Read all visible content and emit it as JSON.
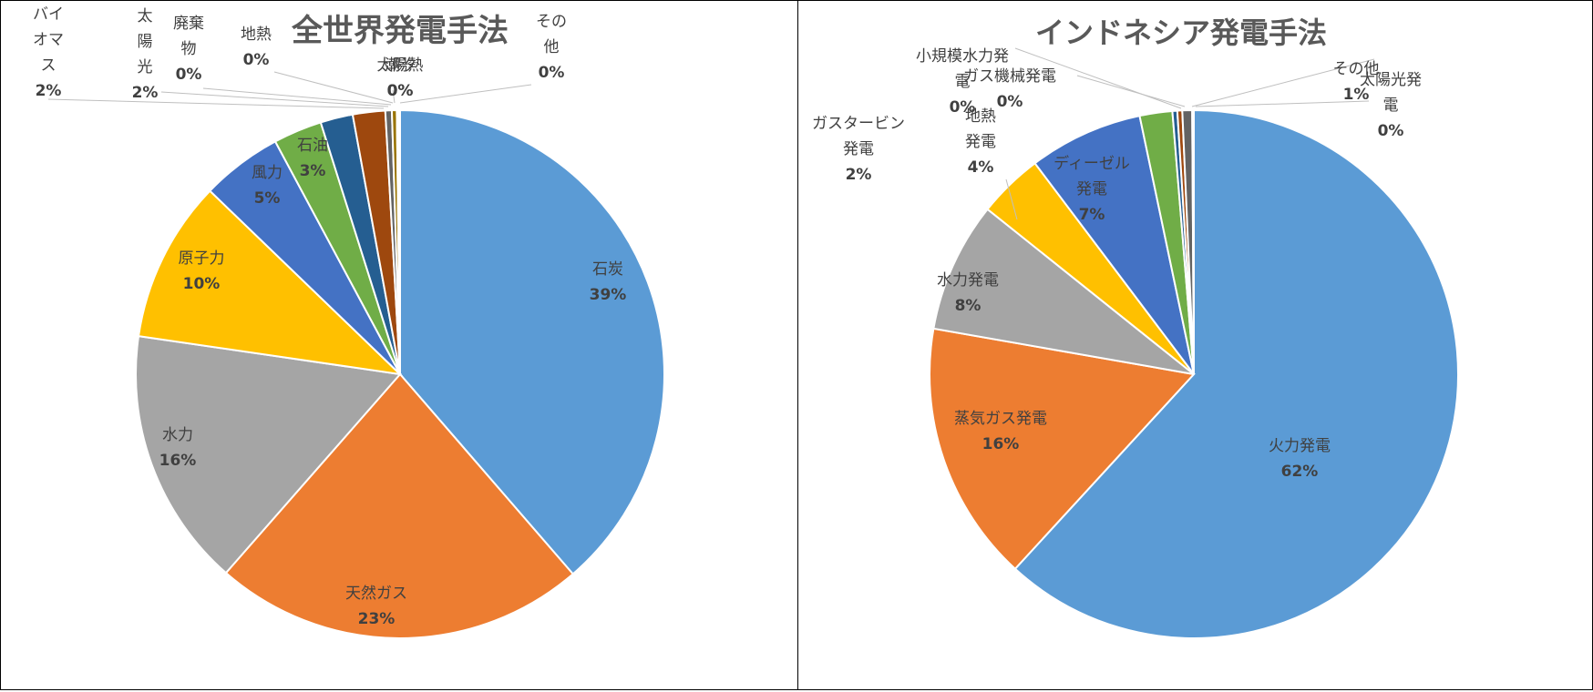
{
  "chart_data": [
    {
      "type": "pie",
      "title": "全世界発電手法",
      "slices": [
        {
          "label": "石炭",
          "value": 39,
          "value_label": "39%",
          "color": "#5B9BD5"
        },
        {
          "label": "天然ガス",
          "value": 23,
          "value_label": "23%",
          "color": "#ED7D31"
        },
        {
          "label": "水力",
          "value": 16,
          "value_label": "16%",
          "color": "#A5A5A5"
        },
        {
          "label": "原子力",
          "value": 10,
          "value_label": "10%",
          "color": "#FFC000"
        },
        {
          "label": "風力",
          "value": 5,
          "value_label": "5%",
          "color": "#4472C4"
        },
        {
          "label": "石油",
          "value": 3,
          "value_label": "3%",
          "color": "#70AD47"
        },
        {
          "label": "バイオマス",
          "value": 2,
          "value_label": "2%",
          "color": "#255E91"
        },
        {
          "label": "太陽光",
          "value": 2,
          "value_label": "2%",
          "color": "#9E480E"
        },
        {
          "label": "廃棄物",
          "value": 0.4,
          "value_label": "0%",
          "color": "#636363"
        },
        {
          "label": "地熱",
          "value": 0.3,
          "value_label": "0%",
          "color": "#997300"
        },
        {
          "label": "太陽熱",
          "value": 0.1,
          "value_label": "0%",
          "color": "#264478"
        },
        {
          "label": "潮汐",
          "value": 0.05,
          "value_label": "0%",
          "color": "#43682B"
        },
        {
          "label": "その他",
          "value": 0.05,
          "value_label": "0%",
          "color": "#698ED0"
        }
      ]
    },
    {
      "type": "pie",
      "title": "インドネシア発電手法",
      "slices": [
        {
          "label": "火力発電",
          "value": 62,
          "value_label": "62%",
          "color": "#5B9BD5"
        },
        {
          "label": "蒸気ガス発電",
          "value": 16,
          "value_label": "16%",
          "color": "#ED7D31"
        },
        {
          "label": "水力発電",
          "value": 8,
          "value_label": "8%",
          "color": "#A5A5A5"
        },
        {
          "label": "地熱発電",
          "value": 4,
          "value_label": "4%",
          "color": "#FFC000"
        },
        {
          "label": "ディーゼル発電",
          "value": 7,
          "value_label": "7%",
          "color": "#4472C4"
        },
        {
          "label": "ガスタービン発電",
          "value": 2,
          "value_label": "2%",
          "color": "#70AD47"
        },
        {
          "label": "小規模水力発電",
          "value": 0.3,
          "value_label": "0%",
          "color": "#255E91"
        },
        {
          "label": "ガス機械発電",
          "value": 0.3,
          "value_label": "0%",
          "color": "#9E480E"
        },
        {
          "label": "その他",
          "value": 0.6,
          "value_label": "1%",
          "color": "#636363"
        },
        {
          "label": "太陽光発電",
          "value": 0.1,
          "value_label": "0%",
          "color": "#997300"
        }
      ]
    }
  ]
}
